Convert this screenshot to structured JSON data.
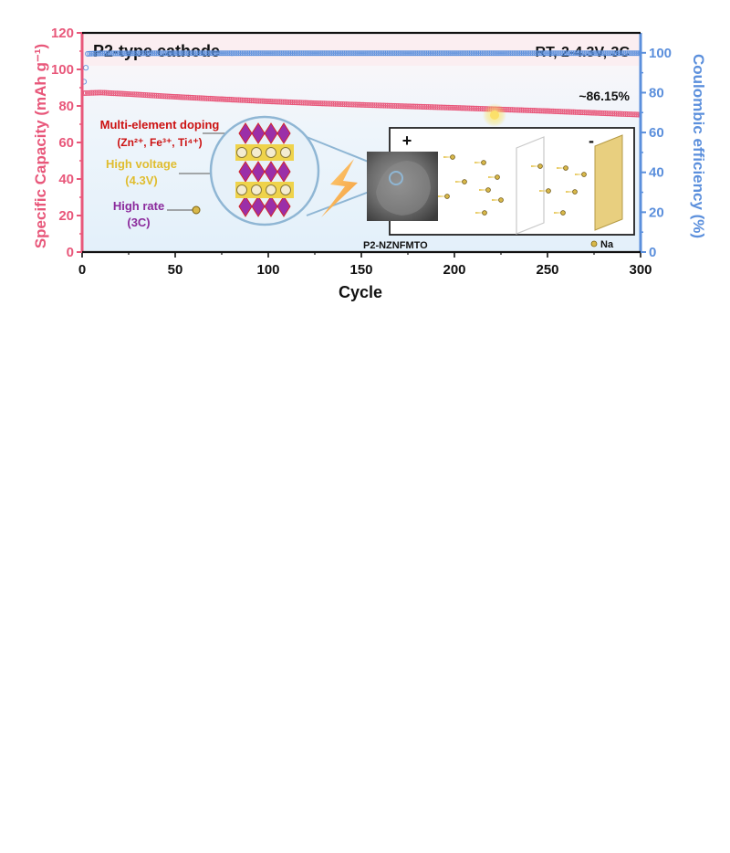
{
  "colors": {
    "capacity": "#e8577a",
    "coulombic": "#5b8fdc",
    "doping": "#cc1111",
    "voltage": "#e3c23a",
    "rate": "#8b2a9c",
    "panel_bg": "#e9f3fb",
    "title_bg": "#fdf2f4"
  },
  "labels": {
    "panel_title": "P2-type cathode",
    "conditions": "RT, 2-4.3V, 3C",
    "retention": "~86.15%",
    "doping_title": "Multi-element doping",
    "doping_ions": "(Zn²⁺, Fe³⁺, Ti⁴⁺)",
    "voltage_title": "High voltage",
    "voltage_value": "(4.3V)",
    "rate_title": "High rate",
    "rate_value": "(3C)",
    "material": "P2-NZNFMTO",
    "na_legend": "Na",
    "plus": "+",
    "minus": "-"
  },
  "chart_data": {
    "type": "scatter",
    "xlabel": "Cycle",
    "ylabel": "Specific Capacity (mAh g⁻¹)",
    "y2label": "Coulombic efficiency (%)",
    "xlim": [
      0,
      300
    ],
    "ylim": [
      0,
      120
    ],
    "y2lim": [
      0,
      110
    ],
    "xticks": [
      0,
      50,
      100,
      150,
      200,
      250,
      300
    ],
    "yticks": [
      0,
      20,
      40,
      60,
      80,
      100,
      120
    ],
    "y2ticks": [
      0,
      20,
      40,
      60,
      80,
      100
    ],
    "series": [
      {
        "name": "Specific Capacity",
        "axis": "left",
        "x": [
          1,
          10,
          25,
          50,
          75,
          100,
          125,
          150,
          175,
          200,
          225,
          250,
          275,
          300
        ],
        "values": [
          87.0,
          87.3,
          86.5,
          85.0,
          83.7,
          82.5,
          81.5,
          80.6,
          79.8,
          79.0,
          78.1,
          77.2,
          76.2,
          75.2
        ]
      },
      {
        "name": "Coulombic efficiency",
        "axis": "right",
        "x": [
          1,
          3,
          10,
          50,
          100,
          150,
          200,
          250,
          300
        ],
        "values": [
          85.5,
          99.5,
          99.7,
          99.8,
          99.8,
          99.8,
          99.8,
          99.8,
          99.8
        ]
      }
    ]
  }
}
